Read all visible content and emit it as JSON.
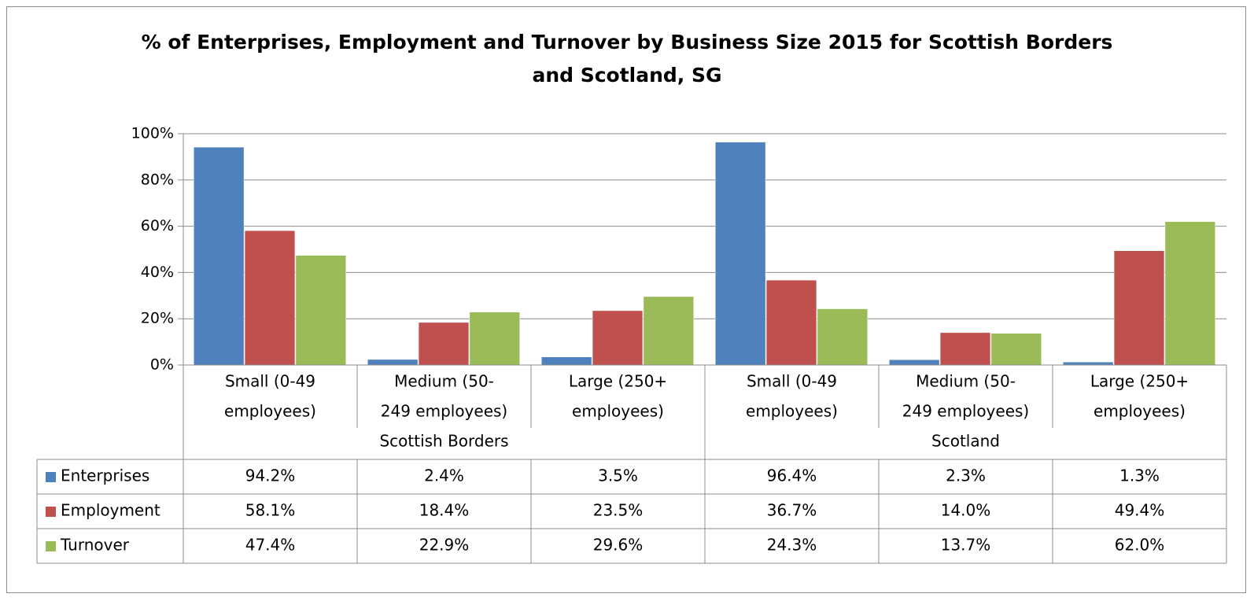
{
  "chart_data": {
    "type": "bar",
    "title": [
      "% of Enterprises, Employment and Turnover by Business Size 2015 for Scottish Borders",
      "and Scotland, SG"
    ],
    "groups": [
      {
        "name": "Scottish Borders",
        "categories": [
          "Small (0-49 employees)",
          "Medium (50-249 employees)",
          "Large (250+ employees)"
        ]
      },
      {
        "name": "Scotland",
        "categories": [
          "Small (0-49 employees)",
          "Medium (50-249 employees)",
          "Large (250+ employees)"
        ]
      }
    ],
    "category_label_lines": [
      [
        "Small (0-49",
        "employees)"
      ],
      [
        "Medium (50-",
        "249 employees)"
      ],
      [
        "Large (250+",
        "employees)"
      ],
      [
        "Small (0-49",
        "employees)"
      ],
      [
        "Medium (50-",
        "249 employees)"
      ],
      [
        "Large (250+",
        "employees)"
      ]
    ],
    "series": [
      {
        "name": "Enterprises",
        "color": "#4f81bd",
        "values": [
          94.2,
          2.4,
          3.5,
          96.4,
          2.3,
          1.3
        ],
        "labels": [
          "94.2%",
          "2.4%",
          "3.5%",
          "96.4%",
          "2.3%",
          "1.3%"
        ]
      },
      {
        "name": "Employment",
        "color": "#c0504d",
        "values": [
          58.1,
          18.4,
          23.5,
          36.7,
          14.0,
          49.4
        ],
        "labels": [
          "58.1%",
          "18.4%",
          "23.5%",
          "36.7%",
          "14.0%",
          "49.4%"
        ]
      },
      {
        "name": "Turnover",
        "color": "#9bbb59",
        "values": [
          47.4,
          22.9,
          29.6,
          24.3,
          13.7,
          62.0
        ],
        "labels": [
          "47.4%",
          "22.9%",
          "29.6%",
          "24.3%",
          "13.7%",
          "62.0%"
        ]
      }
    ],
    "y_ticks": [
      0,
      20,
      40,
      60,
      80,
      100
    ],
    "y_tick_labels": [
      "0%",
      "20%",
      "40%",
      "60%",
      "80%",
      "100%"
    ],
    "ylim": [
      0,
      100
    ],
    "grid": true,
    "legend": "data-table"
  }
}
